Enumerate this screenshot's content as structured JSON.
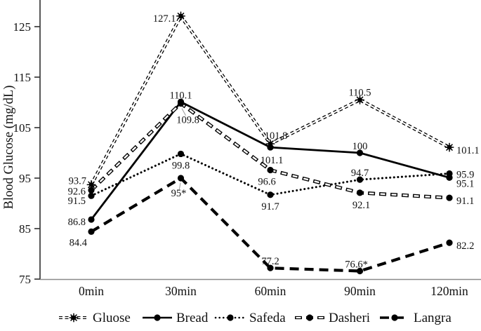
{
  "figure": {
    "background": "#ffffff",
    "line_color": "#000000",
    "leader_color": "#999999",
    "y_axis_color": "#3a3a3a",
    "x_axis_color": "#8a8a8a"
  },
  "chart_data": {
    "type": "line",
    "title": "",
    "xlabel": "",
    "ylabel": "Blood Glucose (mg/dL)",
    "categories": [
      "0min",
      "30min",
      "60min",
      "90min",
      "120min"
    ],
    "ylim": [
      75,
      129
    ],
    "yticks": [
      "75",
      "85",
      "95",
      "105",
      "115",
      "125"
    ],
    "grid": false,
    "legend_position": "bottom",
    "series": [
      {
        "name": "Gluose",
        "line_style": "double-dash",
        "marker": "star",
        "color": "#000000",
        "values": [
          93.7,
          127.1,
          101.8,
          110.5,
          101.1
        ],
        "labels": [
          "93.7",
          "127.1",
          "101.8",
          "110.5",
          "101.1"
        ],
        "label_offsets": [
          [
            -7,
            -5,
            "end"
          ],
          [
            -7,
            4,
            "end"
          ],
          [
            8,
            -11,
            "middle"
          ],
          [
            0,
            -10,
            "middle"
          ],
          [
            10,
            5,
            "start"
          ]
        ]
      },
      {
        "name": "Bread",
        "line_style": "solid",
        "marker": "circle",
        "color": "#000000",
        "values": [
          86.8,
          110.1,
          101.1,
          100,
          95.1
        ],
        "labels": [
          "86.8",
          "110.1",
          "101.1",
          "100",
          "95.1"
        ],
        "label_offsets": [
          [
            -8,
            4,
            "end"
          ],
          [
            0,
            -9,
            "middle"
          ],
          [
            2,
            19,
            "middle"
          ],
          [
            0,
            -9,
            "middle"
          ],
          [
            10,
            9,
            "start"
          ]
        ]
      },
      {
        "name": "Safeda",
        "line_style": "dotted",
        "marker": "circle",
        "color": "#000000",
        "values": [
          91.5,
          99.8,
          91.7,
          94.7,
          95.9
        ],
        "labels": [
          "91.5",
          "99.8",
          "91.7",
          "94.7",
          "95.9"
        ],
        "label_offsets": [
          [
            -8,
            8,
            "end"
          ],
          [
            0,
            17,
            "middle"
          ],
          [
            0,
            17,
            "middle"
          ],
          [
            0,
            -9,
            "middle"
          ],
          [
            10,
            2,
            "start"
          ]
        ]
      },
      {
        "name": "Dasheri",
        "line_style": "hollow-dash",
        "marker": "circle",
        "color": "#000000",
        "values": [
          92.6,
          109.8,
          96.6,
          92.1,
          91.1
        ],
        "labels": [
          "92.6",
          "109.8",
          "96.6",
          "92.1",
          "91.1"
        ],
        "label_offsets": [
          [
            -8,
            2,
            "end"
          ],
          [
            10,
            24,
            "middle",
            true
          ],
          [
            -5,
            17,
            "middle"
          ],
          [
            2,
            18,
            "middle"
          ],
          [
            10,
            5,
            "start"
          ]
        ]
      },
      {
        "name": "Langra",
        "line_style": "thick-dash",
        "marker": "circle",
        "color": "#000000",
        "values": [
          84.4,
          95,
          77.2,
          76.6,
          82.2
        ],
        "labels": [
          "84.4",
          "95*",
          "77.2",
          "76.6*",
          "82.2"
        ],
        "label_offsets": [
          [
            -6,
            16,
            "end"
          ],
          [
            -3,
            22,
            "middle",
            true
          ],
          [
            0,
            -9,
            "middle"
          ],
          [
            -5,
            -9,
            "middle",
            true
          ],
          [
            10,
            5,
            "start"
          ]
        ]
      }
    ]
  }
}
